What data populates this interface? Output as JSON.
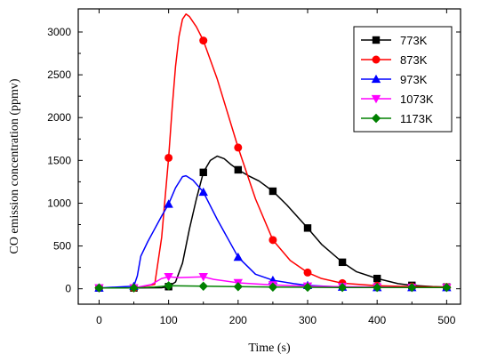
{
  "chart_data": {
    "type": "line",
    "title": "",
    "xlabel": "Time (s)",
    "ylabel": "CO emission concentration (ppmv)",
    "xlim": [
      -30,
      520
    ],
    "ylim": [
      -180,
      3270
    ],
    "xticks": [
      0,
      100,
      200,
      300,
      400,
      500
    ],
    "yticks": [
      0,
      500,
      1000,
      1500,
      2000,
      2500,
      3000
    ],
    "grid": false,
    "legend_position": "top-right",
    "series": [
      {
        "name": "773K",
        "color": "#000000",
        "marker": "square",
        "line": [
          [
            0,
            10
          ],
          [
            50,
            10
          ],
          [
            90,
            12
          ],
          [
            100,
            25
          ],
          [
            110,
            80
          ],
          [
            120,
            300
          ],
          [
            130,
            700
          ],
          [
            140,
            1050
          ],
          [
            150,
            1360
          ],
          [
            160,
            1500
          ],
          [
            170,
            1550
          ],
          [
            180,
            1520
          ],
          [
            190,
            1450
          ],
          [
            200,
            1390
          ],
          [
            215,
            1320
          ],
          [
            230,
            1260
          ],
          [
            250,
            1140
          ],
          [
            270,
            980
          ],
          [
            300,
            710
          ],
          [
            320,
            520
          ],
          [
            350,
            310
          ],
          [
            370,
            200
          ],
          [
            400,
            120
          ],
          [
            430,
            60
          ],
          [
            450,
            40
          ],
          [
            480,
            25
          ],
          [
            500,
            20
          ]
        ],
        "markers": [
          [
            0,
            10
          ],
          [
            50,
            10
          ],
          [
            100,
            25
          ],
          [
            150,
            1360
          ],
          [
            200,
            1390
          ],
          [
            250,
            1140
          ],
          [
            300,
            710
          ],
          [
            350,
            310
          ],
          [
            400,
            120
          ],
          [
            450,
            40
          ],
          [
            500,
            20
          ]
        ]
      },
      {
        "name": "873K",
        "color": "#ff0000",
        "marker": "circle",
        "line": [
          [
            0,
            10
          ],
          [
            50,
            10
          ],
          [
            80,
            50
          ],
          [
            90,
            600
          ],
          [
            100,
            1530
          ],
          [
            105,
            2100
          ],
          [
            110,
            2600
          ],
          [
            115,
            2950
          ],
          [
            120,
            3150
          ],
          [
            125,
            3210
          ],
          [
            130,
            3180
          ],
          [
            140,
            3060
          ],
          [
            150,
            2900
          ],
          [
            170,
            2450
          ],
          [
            200,
            1650
          ],
          [
            225,
            1050
          ],
          [
            250,
            570
          ],
          [
            275,
            330
          ],
          [
            300,
            190
          ],
          [
            320,
            120
          ],
          [
            350,
            65
          ],
          [
            400,
            35
          ],
          [
            450,
            25
          ],
          [
            500,
            20
          ]
        ],
        "markers": [
          [
            0,
            10
          ],
          [
            50,
            10
          ],
          [
            100,
            1530
          ],
          [
            150,
            2900
          ],
          [
            200,
            1650
          ],
          [
            250,
            570
          ],
          [
            300,
            190
          ],
          [
            350,
            65
          ],
          [
            400,
            35
          ],
          [
            450,
            25
          ],
          [
            500,
            20
          ]
        ]
      },
      {
        "name": "973K",
        "color": "#0000ff",
        "marker": "triangle-up",
        "line": [
          [
            0,
            10
          ],
          [
            50,
            30
          ],
          [
            55,
            150
          ],
          [
            60,
            380
          ],
          [
            70,
            550
          ],
          [
            80,
            700
          ],
          [
            90,
            850
          ],
          [
            100,
            990
          ],
          [
            110,
            1180
          ],
          [
            120,
            1310
          ],
          [
            125,
            1320
          ],
          [
            135,
            1270
          ],
          [
            150,
            1130
          ],
          [
            170,
            810
          ],
          [
            200,
            370
          ],
          [
            225,
            170
          ],
          [
            250,
            100
          ],
          [
            280,
            60
          ],
          [
            300,
            40
          ],
          [
            350,
            20
          ],
          [
            400,
            15
          ],
          [
            450,
            15
          ],
          [
            500,
            15
          ]
        ],
        "markers": [
          [
            0,
            10
          ],
          [
            50,
            30
          ],
          [
            100,
            990
          ],
          [
            150,
            1130
          ],
          [
            200,
            370
          ],
          [
            250,
            100
          ],
          [
            300,
            40
          ],
          [
            350,
            20
          ],
          [
            400,
            15
          ],
          [
            450,
            15
          ],
          [
            500,
            15
          ]
        ]
      },
      {
        "name": "1073K",
        "color": "#ff00ff",
        "marker": "triangle-down",
        "line": [
          [
            0,
            10
          ],
          [
            50,
            10
          ],
          [
            75,
            50
          ],
          [
            90,
            120
          ],
          [
            100,
            140
          ],
          [
            115,
            130
          ],
          [
            130,
            135
          ],
          [
            150,
            140
          ],
          [
            165,
            110
          ],
          [
            200,
            70
          ],
          [
            250,
            45
          ],
          [
            300,
            30
          ],
          [
            350,
            25
          ],
          [
            400,
            20
          ],
          [
            450,
            15
          ],
          [
            500,
            15
          ]
        ],
        "markers": [
          [
            0,
            10
          ],
          [
            50,
            10
          ],
          [
            100,
            140
          ],
          [
            150,
            140
          ],
          [
            200,
            70
          ],
          [
            250,
            45
          ],
          [
            300,
            30
          ],
          [
            350,
            25
          ],
          [
            400,
            20
          ],
          [
            450,
            15
          ],
          [
            500,
            15
          ]
        ]
      },
      {
        "name": "1173K",
        "color": "#008000",
        "marker": "diamond",
        "line": [
          [
            0,
            10
          ],
          [
            50,
            10
          ],
          [
            80,
            20
          ],
          [
            100,
            35
          ],
          [
            150,
            30
          ],
          [
            200,
            25
          ],
          [
            250,
            20
          ],
          [
            300,
            18
          ],
          [
            350,
            15
          ],
          [
            400,
            15
          ],
          [
            450,
            15
          ],
          [
            500,
            15
          ]
        ],
        "markers": [
          [
            0,
            10
          ],
          [
            50,
            10
          ],
          [
            100,
            35
          ],
          [
            150,
            30
          ],
          [
            200,
            25
          ],
          [
            250,
            20
          ],
          [
            300,
            18
          ],
          [
            350,
            15
          ],
          [
            400,
            15
          ],
          [
            450,
            15
          ],
          [
            500,
            15
          ]
        ]
      }
    ]
  }
}
